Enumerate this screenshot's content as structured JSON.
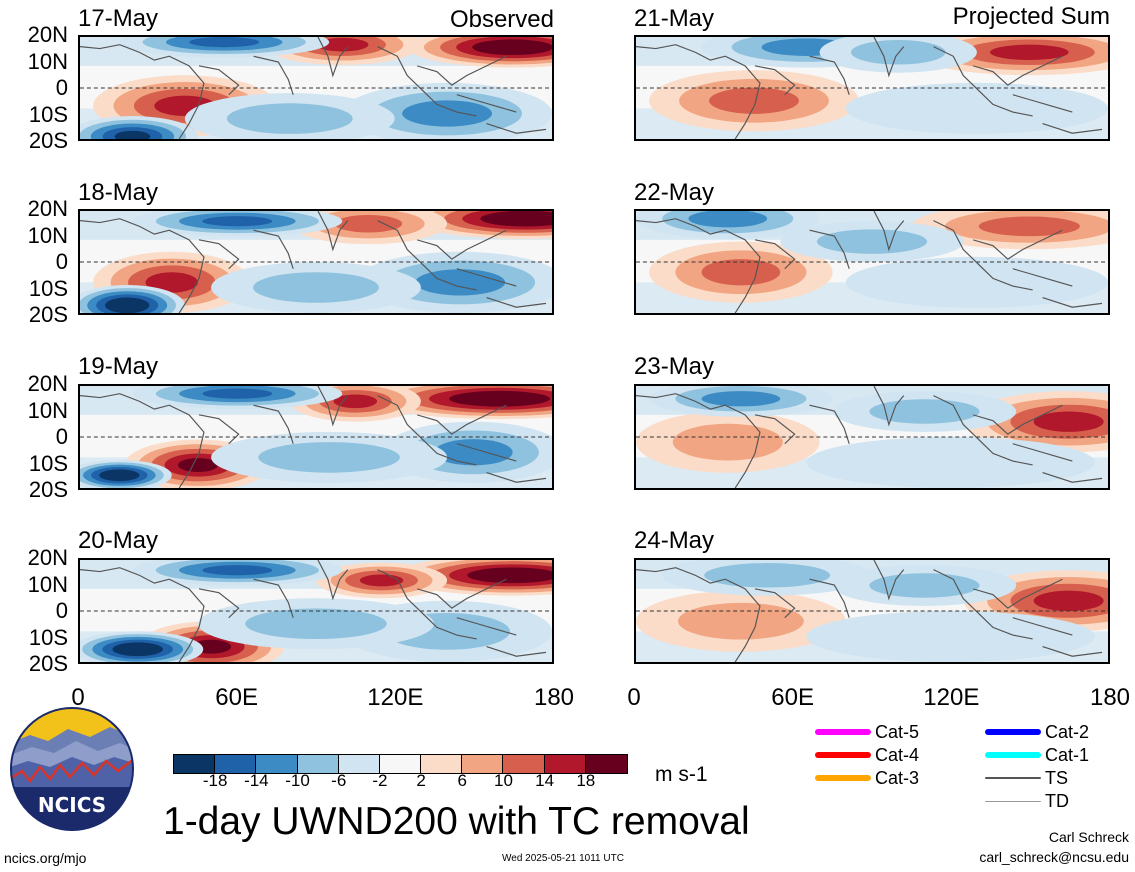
{
  "columns": {
    "left_label": "Observed",
    "right_label": "Projected Sum"
  },
  "panels_left": [
    {
      "date": "17-May"
    },
    {
      "date": "18-May"
    },
    {
      "date": "19-May"
    },
    {
      "date": "20-May"
    }
  ],
  "panels_right": [
    {
      "date": "21-May"
    },
    {
      "date": "22-May"
    },
    {
      "date": "23-May"
    },
    {
      "date": "24-May"
    }
  ],
  "lat_labels": [
    "20N",
    "10N",
    "0",
    "10S",
    "20S"
  ],
  "lon_labels": [
    "0",
    "60E",
    "120E",
    "180"
  ],
  "colorbar": {
    "colors": [
      "#0a3564",
      "#1f62aa",
      "#3c8bc4",
      "#8fc2de",
      "#d0e4f1",
      "#f7f7f7",
      "#fbdcc8",
      "#f2a582",
      "#d6604d",
      "#b2182b",
      "#67001f"
    ],
    "ticks": [
      "-18",
      "-14",
      "-10",
      "-6",
      "-2",
      "2",
      "6",
      "10",
      "14",
      "18"
    ],
    "units": "m s-1"
  },
  "legend": [
    {
      "label": "Cat-5",
      "color": "#ff00ff",
      "weight": "thick"
    },
    {
      "label": "Cat-4",
      "color": "#ff0000",
      "weight": "thick"
    },
    {
      "label": "Cat-3",
      "color": "#ffa500",
      "weight": "thick"
    },
    {
      "label": "Cat-2",
      "color": "#0000ff",
      "weight": "thick"
    },
    {
      "label": "Cat-1",
      "color": "#00ffff",
      "weight": "thick"
    },
    {
      "label": "TS",
      "color": "#555555",
      "weight": "medium"
    },
    {
      "label": "TD",
      "color": "#999999",
      "weight": "thin"
    }
  ],
  "title": "1-day UWND200 with TC removal",
  "logo_text": "NCICS",
  "url": "ncics.org/mjo",
  "timestamp": "Wed 2025-05-21 1011 UTC",
  "author": "Carl Schreck",
  "email": "carl_schreck@ncsu.edu"
}
